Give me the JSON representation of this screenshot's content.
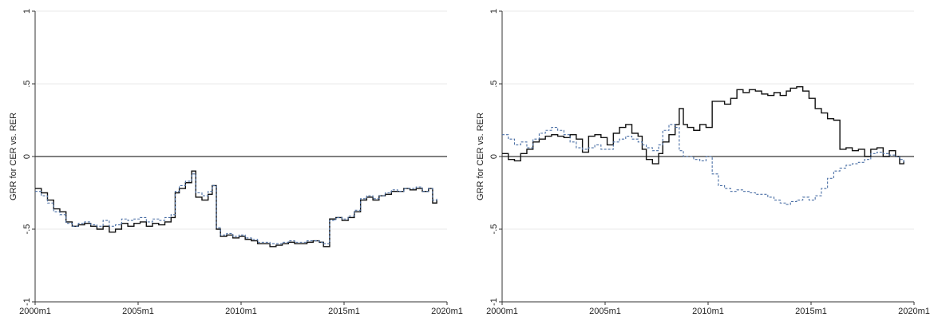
{
  "chart_data": [
    {
      "type": "line",
      "title": "",
      "xlabel": "",
      "ylabel": "GRR for CER vs. RER",
      "xlim": [
        2000.0,
        2020.0
      ],
      "ylim": [
        -1,
        1
      ],
      "x_ticks": [
        2000,
        2005,
        2010,
        2015,
        2020
      ],
      "x_tick_labels": [
        "2000m1",
        "2005m1",
        "2010m1",
        "2015m1",
        "2020m1"
      ],
      "y_ticks": [
        -1,
        -0.5,
        0,
        0.5,
        1
      ],
      "y_tick_labels": [
        "-1",
        "-.5",
        "0",
        ".5",
        "1"
      ],
      "reference_line": 0,
      "grid": true,
      "legend": "none",
      "colors": {
        "solid": "#111111",
        "dashed": "#4a6fa5",
        "reference": "#333333",
        "grid": "#e8e8e8"
      },
      "series": [
        {
          "style": "solid",
          "x": [
            2000.0,
            2000.3,
            2000.6,
            2000.9,
            2001.2,
            2001.5,
            2001.8,
            2002.1,
            2002.4,
            2002.7,
            2003.0,
            2003.3,
            2003.6,
            2003.9,
            2004.2,
            2004.5,
            2004.8,
            2005.1,
            2005.4,
            2005.7,
            2006.0,
            2006.3,
            2006.6,
            2006.8,
            2007.0,
            2007.3,
            2007.6,
            2007.8,
            2008.1,
            2008.4,
            2008.6,
            2008.8,
            2009.0,
            2009.3,
            2009.6,
            2009.9,
            2010.2,
            2010.5,
            2010.8,
            2011.1,
            2011.4,
            2011.7,
            2012.0,
            2012.3,
            2012.6,
            2012.9,
            2013.2,
            2013.5,
            2013.8,
            2014.0,
            2014.3,
            2014.6,
            2014.9,
            2015.2,
            2015.5,
            2015.8,
            2016.1,
            2016.4,
            2016.7,
            2017.0,
            2017.3,
            2017.6,
            2017.9,
            2018.2,
            2018.5,
            2018.8,
            2019.1,
            2019.3,
            2019.5
          ],
          "y": [
            -0.22,
            -0.25,
            -0.3,
            -0.36,
            -0.38,
            -0.45,
            -0.48,
            -0.47,
            -0.46,
            -0.48,
            -0.5,
            -0.48,
            -0.52,
            -0.5,
            -0.46,
            -0.48,
            -0.46,
            -0.45,
            -0.48,
            -0.46,
            -0.47,
            -0.45,
            -0.42,
            -0.25,
            -0.22,
            -0.18,
            -0.1,
            -0.28,
            -0.3,
            -0.26,
            -0.2,
            -0.5,
            -0.55,
            -0.54,
            -0.56,
            -0.55,
            -0.57,
            -0.58,
            -0.6,
            -0.6,
            -0.62,
            -0.61,
            -0.6,
            -0.59,
            -0.6,
            -0.6,
            -0.59,
            -0.58,
            -0.59,
            -0.62,
            -0.43,
            -0.42,
            -0.44,
            -0.42,
            -0.38,
            -0.3,
            -0.28,
            -0.3,
            -0.27,
            -0.26,
            -0.24,
            -0.24,
            -0.22,
            -0.23,
            -0.22,
            -0.24,
            -0.22,
            -0.32,
            -0.3
          ]
        },
        {
          "style": "dashed",
          "x": [
            2000.0,
            2000.3,
            2000.6,
            2000.9,
            2001.2,
            2001.5,
            2001.8,
            2002.1,
            2002.4,
            2002.7,
            2003.0,
            2003.3,
            2003.6,
            2003.9,
            2004.2,
            2004.5,
            2004.8,
            2005.1,
            2005.4,
            2005.7,
            2006.0,
            2006.3,
            2006.6,
            2006.8,
            2007.0,
            2007.3,
            2007.6,
            2007.8,
            2008.1,
            2008.4,
            2008.6,
            2008.8,
            2009.0,
            2009.3,
            2009.6,
            2009.9,
            2010.2,
            2010.5,
            2010.8,
            2011.1,
            2011.4,
            2011.7,
            2012.0,
            2012.3,
            2012.6,
            2012.9,
            2013.2,
            2013.5,
            2013.8,
            2014.0,
            2014.3,
            2014.6,
            2014.9,
            2015.2,
            2015.5,
            2015.8,
            2016.1,
            2016.4,
            2016.7,
            2017.0,
            2017.3,
            2017.6,
            2017.9,
            2018.2,
            2018.5,
            2018.8,
            2019.1,
            2019.3,
            2019.5
          ],
          "y": [
            -0.24,
            -0.27,
            -0.32,
            -0.38,
            -0.4,
            -0.46,
            -0.48,
            -0.46,
            -0.45,
            -0.47,
            -0.48,
            -0.44,
            -0.48,
            -0.47,
            -0.43,
            -0.44,
            -0.43,
            -0.42,
            -0.45,
            -0.43,
            -0.44,
            -0.42,
            -0.4,
            -0.24,
            -0.2,
            -0.17,
            -0.12,
            -0.25,
            -0.27,
            -0.24,
            -0.2,
            -0.49,
            -0.54,
            -0.53,
            -0.55,
            -0.54,
            -0.56,
            -0.57,
            -0.59,
            -0.59,
            -0.6,
            -0.6,
            -0.59,
            -0.58,
            -0.59,
            -0.59,
            -0.58,
            -0.58,
            -0.59,
            -0.6,
            -0.44,
            -0.42,
            -0.43,
            -0.41,
            -0.37,
            -0.29,
            -0.27,
            -0.29,
            -0.27,
            -0.25,
            -0.23,
            -0.24,
            -0.22,
            -0.22,
            -0.21,
            -0.24,
            -0.22,
            -0.3,
            -0.29
          ]
        }
      ]
    },
    {
      "type": "line",
      "title": "",
      "xlabel": "",
      "ylabel": "GRR for CER vs. RER",
      "xlim": [
        2000.0,
        2020.0
      ],
      "ylim": [
        -1,
        1
      ],
      "x_ticks": [
        2000,
        2005,
        2010,
        2015,
        2020
      ],
      "x_tick_labels": [
        "2000m1",
        "2005m1",
        "2010m1",
        "2015m1",
        "2020m1"
      ],
      "y_ticks": [
        -1,
        -0.5,
        0,
        0.5,
        1
      ],
      "y_tick_labels": [
        "-1",
        "-.5",
        "0",
        ".5",
        "1"
      ],
      "reference_line": 0,
      "grid": true,
      "legend": "none",
      "colors": {
        "solid": "#111111",
        "dashed": "#4a6fa5",
        "reference": "#333333",
        "grid": "#e8e8e8"
      },
      "series": [
        {
          "style": "solid",
          "x": [
            2000.0,
            2000.3,
            2000.6,
            2000.9,
            2001.2,
            2001.5,
            2001.8,
            2002.1,
            2002.4,
            2002.7,
            2003.0,
            2003.3,
            2003.6,
            2003.9,
            2004.2,
            2004.5,
            2004.8,
            2005.1,
            2005.4,
            2005.7,
            2006.0,
            2006.3,
            2006.6,
            2006.8,
            2007.0,
            2007.3,
            2007.6,
            2007.8,
            2008.1,
            2008.4,
            2008.6,
            2008.8,
            2009.0,
            2009.3,
            2009.6,
            2009.9,
            2010.2,
            2010.5,
            2010.8,
            2011.1,
            2011.4,
            2011.7,
            2012.0,
            2012.3,
            2012.6,
            2012.9,
            2013.2,
            2013.5,
            2013.8,
            2014.0,
            2014.3,
            2014.6,
            2014.9,
            2015.2,
            2015.5,
            2015.8,
            2016.1,
            2016.4,
            2016.7,
            2017.0,
            2017.3,
            2017.6,
            2017.9,
            2018.2,
            2018.5,
            2018.8,
            2019.1,
            2019.3,
            2019.5
          ],
          "y": [
            0.02,
            -0.02,
            -0.03,
            0.02,
            0.05,
            0.1,
            0.12,
            0.14,
            0.15,
            0.14,
            0.13,
            0.15,
            0.12,
            0.03,
            0.14,
            0.15,
            0.13,
            0.08,
            0.16,
            0.2,
            0.22,
            0.16,
            0.14,
            0.05,
            -0.02,
            -0.05,
            0.02,
            0.1,
            0.15,
            0.22,
            0.33,
            0.22,
            0.2,
            0.18,
            0.22,
            0.2,
            0.38,
            0.38,
            0.36,
            0.4,
            0.46,
            0.44,
            0.46,
            0.45,
            0.43,
            0.42,
            0.44,
            0.42,
            0.45,
            0.47,
            0.48,
            0.45,
            0.4,
            0.33,
            0.3,
            0.26,
            0.25,
            0.05,
            0.06,
            0.04,
            0.05,
            0.0,
            0.05,
            0.06,
            0.0,
            0.04,
            0.0,
            -0.05,
            -0.03
          ]
        },
        {
          "style": "dashed",
          "x": [
            2000.0,
            2000.3,
            2000.6,
            2000.9,
            2001.2,
            2001.5,
            2001.8,
            2002.1,
            2002.4,
            2002.7,
            2003.0,
            2003.3,
            2003.6,
            2003.9,
            2004.2,
            2004.5,
            2004.8,
            2005.1,
            2005.4,
            2005.7,
            2006.0,
            2006.3,
            2006.6,
            2006.8,
            2007.0,
            2007.3,
            2007.6,
            2007.8,
            2008.1,
            2008.4,
            2008.6,
            2008.8,
            2009.0,
            2009.3,
            2009.6,
            2009.9,
            2010.2,
            2010.5,
            2010.8,
            2011.1,
            2011.4,
            2011.7,
            2012.0,
            2012.3,
            2012.6,
            2012.9,
            2013.2,
            2013.5,
            2013.8,
            2014.0,
            2014.3,
            2014.6,
            2014.9,
            2015.2,
            2015.5,
            2015.8,
            2016.1,
            2016.4,
            2016.7,
            2017.0,
            2017.3,
            2017.6,
            2017.9,
            2018.2,
            2018.5,
            2018.8,
            2019.1,
            2019.3,
            2019.5
          ],
          "y": [
            0.15,
            0.12,
            0.08,
            0.1,
            0.06,
            0.12,
            0.16,
            0.18,
            0.2,
            0.18,
            0.15,
            0.1,
            0.06,
            0.05,
            0.06,
            0.08,
            0.05,
            0.05,
            0.1,
            0.12,
            0.14,
            0.12,
            0.1,
            0.08,
            0.06,
            0.04,
            0.08,
            0.18,
            0.22,
            0.2,
            0.04,
            0.0,
            0.0,
            -0.02,
            -0.03,
            0.0,
            -0.12,
            -0.2,
            -0.22,
            -0.24,
            -0.23,
            -0.24,
            -0.25,
            -0.26,
            -0.26,
            -0.28,
            -0.3,
            -0.32,
            -0.33,
            -0.31,
            -0.3,
            -0.28,
            -0.3,
            -0.27,
            -0.22,
            -0.15,
            -0.1,
            -0.08,
            -0.06,
            -0.05,
            -0.04,
            -0.02,
            0.02,
            0.03,
            0.02,
            0.01,
            0.0,
            -0.02,
            -0.04
          ]
        }
      ]
    }
  ]
}
